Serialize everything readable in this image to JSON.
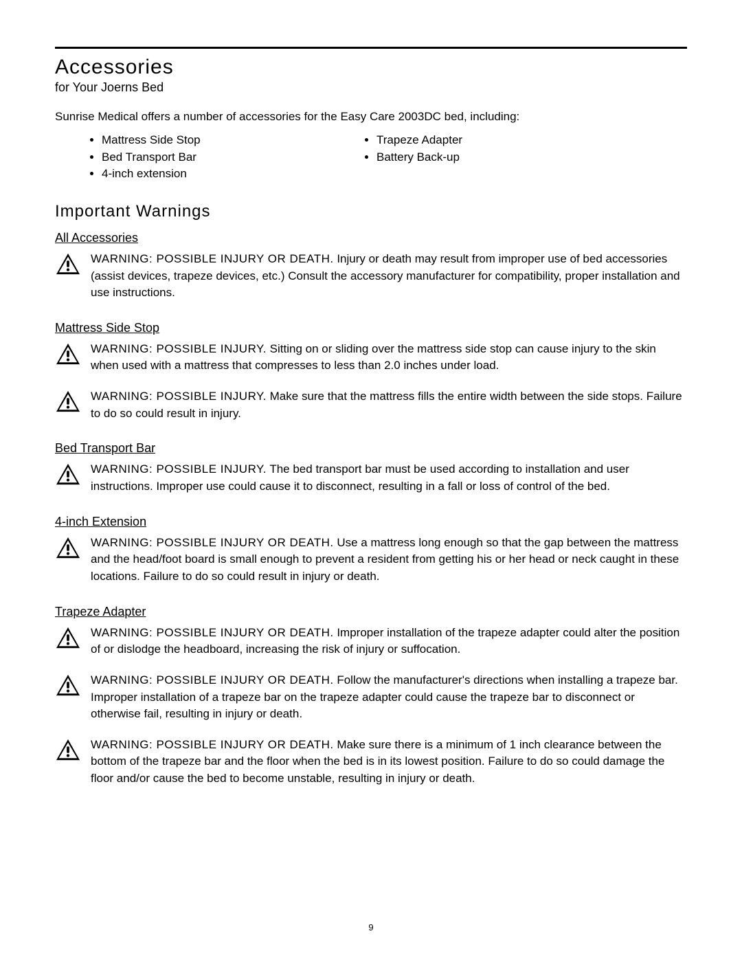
{
  "page": {
    "title": "Accessories",
    "subtitle": "for Your Joerns Bed",
    "intro": "Sunrise Medical offers a number of accessories for the Easy Care 2003DC bed, including:",
    "bulletsLeft": [
      "Mattress Side Stop",
      "Bed Transport Bar",
      "4-inch extension"
    ],
    "bulletsRight": [
      "Trapeze Adapter",
      "Battery Back-up"
    ],
    "warningsTitle": "Important Warnings",
    "pageNumber": "9"
  },
  "sections": [
    {
      "header": "All Accessories",
      "warnings": [
        {
          "label": "WARNING: POSSIBLE INJURY OR DEATH.",
          "body": " Injury or death may result from improper use of bed accessories (assist devices, trapeze devices, etc.) Consult the accessory manufacturer for compatibility, proper installation and use instructions."
        }
      ]
    },
    {
      "header": "Mattress Side Stop",
      "warnings": [
        {
          "label": "WARNING: POSSIBLE INJURY.",
          "body": " Sitting on or sliding over the mattress side stop can cause injury to the skin when used with a mattress that compresses to less than 2.0 inches under load."
        },
        {
          "label": "WARNING: POSSIBLE INJURY.",
          "body": " Make sure that the mattress fills the entire width between the side stops. Failure to do so could result in injury."
        }
      ]
    },
    {
      "header": "Bed Transport Bar",
      "warnings": [
        {
          "label": "WARNING: POSSIBLE INJURY.",
          "body": " The bed transport bar must be used according to installation and user instructions. Improper use could cause it to disconnect, resulting in a fall or loss of control of the bed."
        }
      ]
    },
    {
      "header": "4-inch Extension",
      "warnings": [
        {
          "label": "WARNING: POSSIBLE INJURY OR DEATH.",
          "body": " Use a mattress long enough so that the gap between the mattress and the head/foot board is small enough to prevent a resident from getting his or her head or neck caught in these locations. Failure to do so could result in injury or death."
        }
      ]
    },
    {
      "header": "Trapeze Adapter",
      "warnings": [
        {
          "label": "WARNING: POSSIBLE INJURY OR DEATH.",
          "body": " Improper installation of the trapeze adapter could alter the position of or dislodge the headboard, increasing the risk of injury or suffocation."
        },
        {
          "label": "WARNING: POSSIBLE INJURY OR DEATH.",
          "body": " Follow the manufacturer's directions when installing a trapeze bar. Improper installation of a trapeze bar on the trapeze adapter could cause the trapeze bar to disconnect or otherwise fail, resulting in injury or death."
        },
        {
          "label": "WARNING: POSSIBLE INJURY OR DEATH.",
          "body": " Make sure there is a minimum of 1 inch clearance between the bottom of the trapeze bar and the floor when the bed is in its lowest position. Failure to do so could damage the floor and/or cause the bed to become unstable, resulting in injury or death."
        }
      ]
    }
  ]
}
